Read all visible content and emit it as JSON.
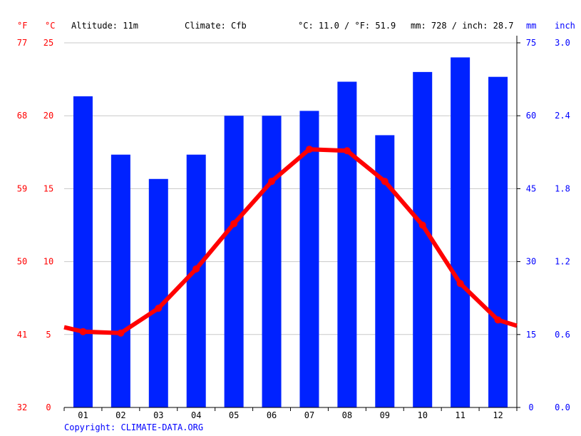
{
  "header": {
    "unit_f": "°F",
    "unit_c": "°C",
    "altitude": "Altitude: 11m",
    "climate": "Climate: Cfb",
    "temp_summary": "°C: 11.0 / °F: 51.9",
    "precip_summary": "mm: 728 / inch: 28.7",
    "unit_mm": "mm",
    "unit_inch": "inch"
  },
  "copyright": "Copyright: CLIMATE-DATA.ORG",
  "colors": {
    "temperature": "#ff0000",
    "precipitation": "#0022ff",
    "grid": "#c8c8c8"
  },
  "chart_data": {
    "type": "bar",
    "categories": [
      "01",
      "02",
      "03",
      "04",
      "05",
      "06",
      "07",
      "08",
      "09",
      "10",
      "11",
      "12"
    ],
    "series": [
      {
        "values": [
          64,
          52,
          47,
          52,
          60,
          60,
          61,
          67,
          56,
          69,
          72,
          68
        ],
        "type": "bar",
        "axis": "mm"
      },
      {
        "values": [
          5.2,
          5.1,
          6.8,
          9.5,
          12.6,
          15.5,
          17.7,
          17.6,
          15.5,
          12.5,
          8.5,
          6.0
        ],
        "type": "line",
        "axis": "celsius"
      }
    ],
    "line_extension": {
      "start": 5.5,
      "end": 5.6
    },
    "axes": {
      "celsius": {
        "ticks": [
          "0",
          "5",
          "10",
          "15",
          "20",
          "25"
        ],
        "ylim": [
          0,
          25
        ]
      },
      "fahrenheit": {
        "ticks": [
          "32",
          "41",
          "50",
          "59",
          "68",
          "77"
        ]
      },
      "mm": {
        "ticks": [
          "0",
          "15",
          "30",
          "45",
          "60",
          "75"
        ],
        "ylim": [
          0,
          75
        ]
      },
      "inch": {
        "ticks": [
          "0.0",
          "0.6",
          "1.2",
          "1.8",
          "2.4",
          "3.0"
        ]
      }
    },
    "grid": true
  }
}
